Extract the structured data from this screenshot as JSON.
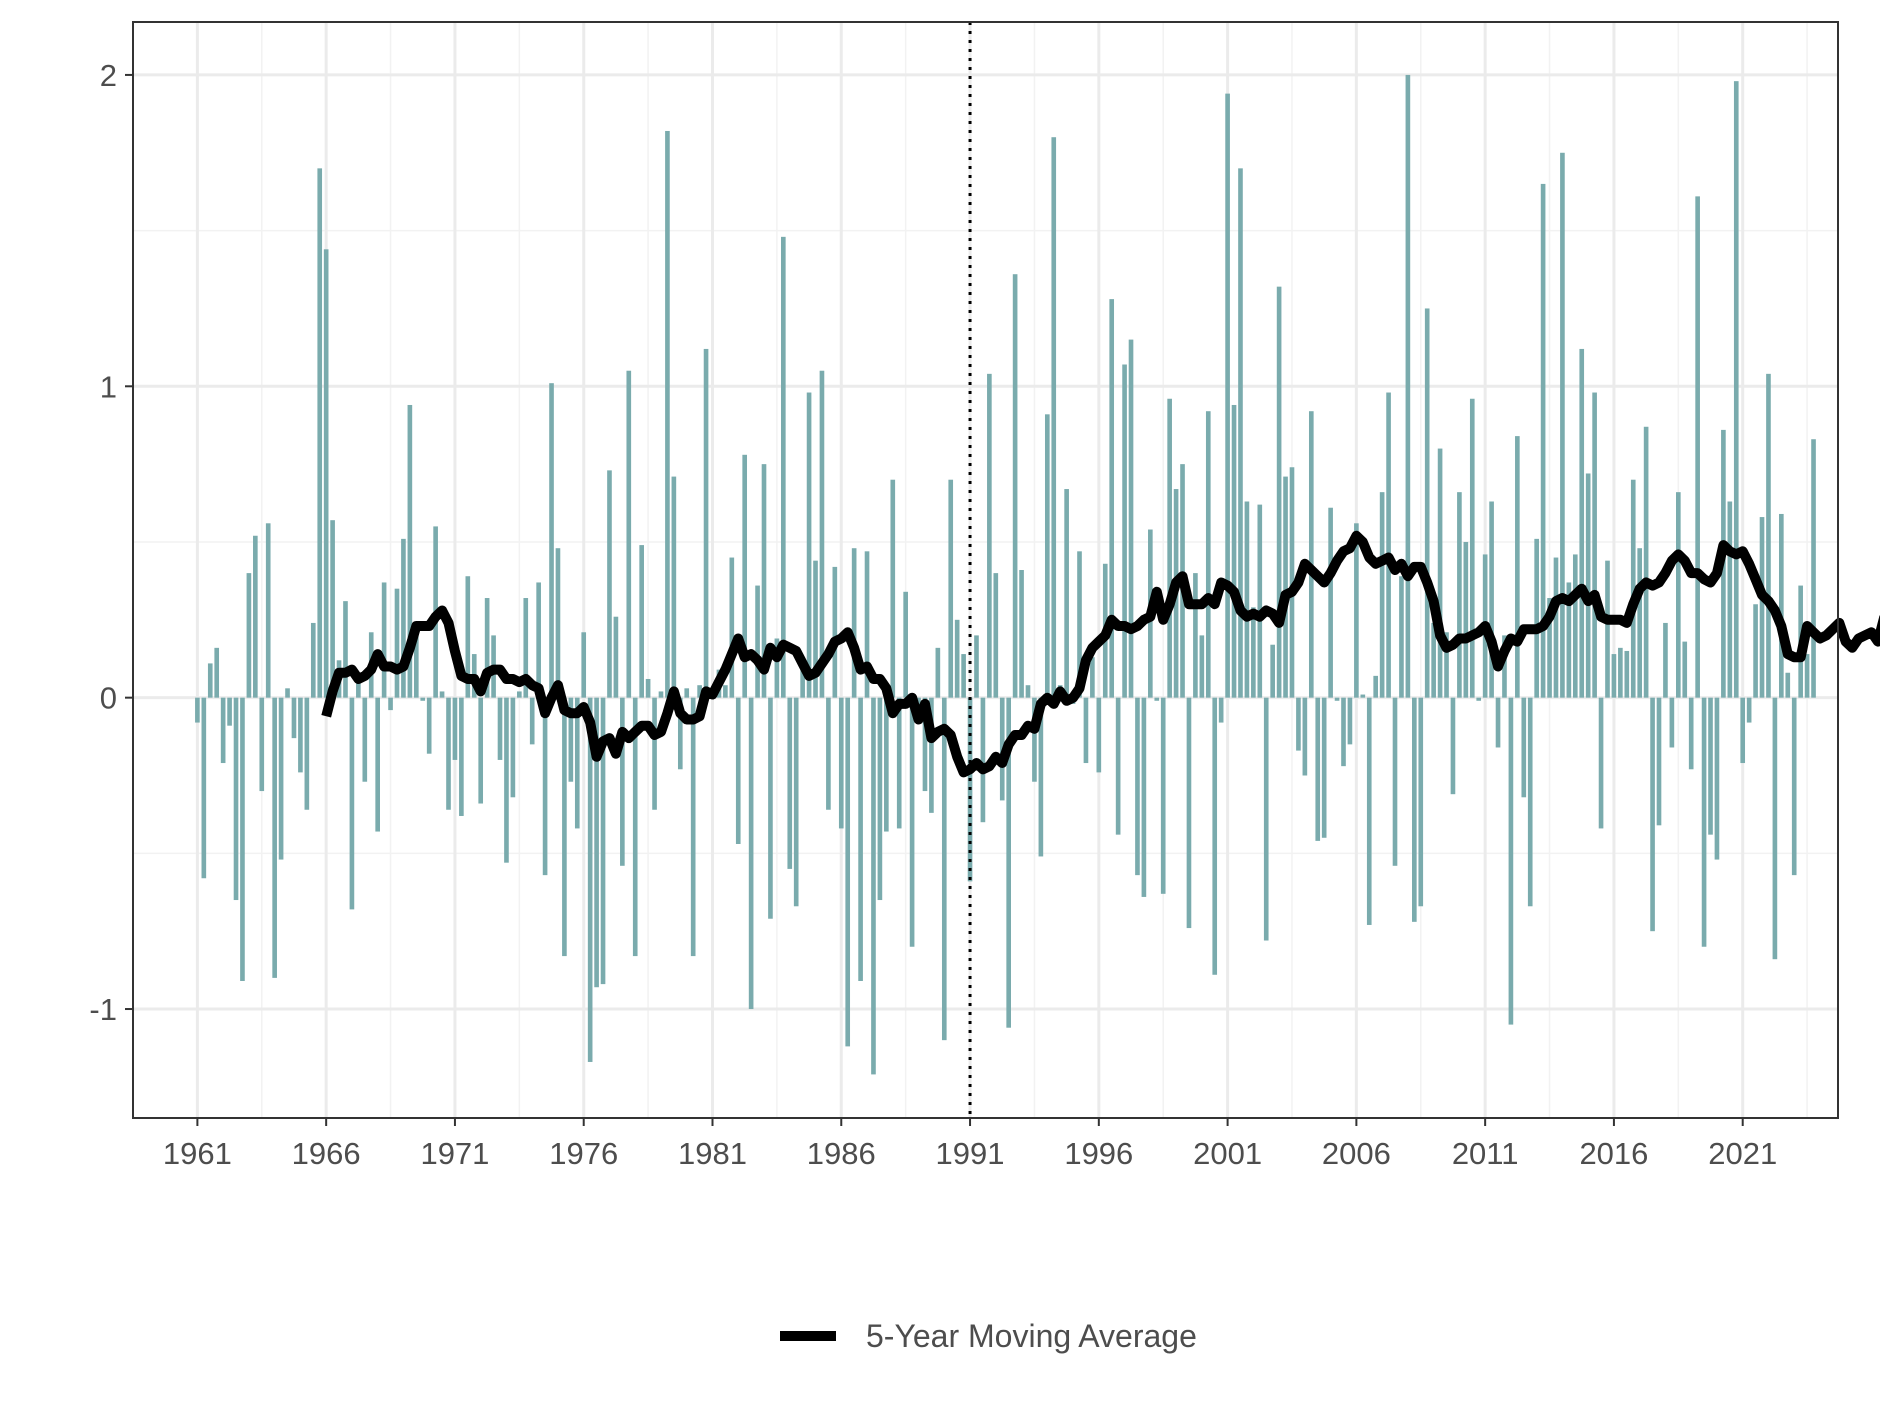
{
  "chart_data": {
    "type": "bar",
    "title": "",
    "xlabel": "",
    "ylabel": "",
    "x_tick_labels": [
      "1961",
      "1966",
      "1971",
      "1976",
      "1981",
      "1986",
      "1991",
      "1996",
      "2001",
      "2006",
      "2011",
      "2016",
      "2021"
    ],
    "y_tick_labels": [
      "-1",
      "0",
      "1",
      "2"
    ],
    "xlim": [
      1958.5,
      2024.7
    ],
    "ylim": [
      -1.35,
      2.17
    ],
    "grid": true,
    "legend_position": "bottom",
    "reference_line_x": 1991,
    "colors": {
      "bars": "#7aabad",
      "moving_average": "#000000",
      "grid_major": "#ebebeb",
      "grid_minor": "#f2f2f2",
      "panel_border": "#333333"
    },
    "series": [
      {
        "kind": "bars",
        "start_x": 1961,
        "step": 0.25,
        "values": [
          -0.08,
          -0.58,
          0.11,
          0.16,
          -0.21,
          -0.09,
          -0.65,
          -0.91,
          0.4,
          0.52,
          -0.3,
          0.56,
          -0.9,
          -0.52,
          0.03,
          -0.13,
          -0.24,
          -0.36,
          0.24,
          1.7,
          1.44,
          0.57,
          0.12,
          0.31,
          -0.68,
          0.05,
          -0.27,
          0.21,
          -0.43,
          0.37,
          -0.04,
          0.35,
          0.51,
          0.94,
          0.23,
          -0.01,
          -0.18,
          0.55,
          0.02,
          -0.36,
          -0.2,
          -0.38,
          0.39,
          0.14,
          -0.34,
          0.32,
          0.2,
          -0.2,
          -0.53,
          -0.32,
          0.02,
          0.32,
          -0.15,
          0.37,
          -0.57,
          1.01,
          0.48,
          -0.83,
          -0.27,
          -0.42,
          0.21,
          -1.17,
          -0.93,
          -0.92,
          0.73,
          0.26,
          -0.54,
          1.05,
          -0.83,
          0.49,
          0.06,
          -0.36,
          0.02,
          1.82,
          0.71,
          -0.23,
          0.03,
          -0.83,
          0.04,
          1.12,
          0.03,
          0.09,
          0.04,
          0.45,
          -0.47,
          0.78,
          -1.0,
          0.36,
          0.75,
          -0.71,
          0.19,
          1.48,
          -0.55,
          -0.67,
          0.09,
          0.98,
          0.44,
          1.05,
          -0.36,
          0.42,
          -0.42,
          -1.12,
          0.48,
          -0.91,
          0.47,
          -1.21,
          -0.65,
          -0.43,
          0.7,
          -0.42,
          0.34,
          -0.8,
          -0.03,
          -0.3,
          -0.37,
          0.16,
          -1.1,
          0.7,
          0.25,
          0.14,
          -0.59,
          0.2,
          -0.4,
          1.04,
          0.4,
          -0.33,
          -1.06,
          1.36,
          0.41,
          0.04,
          -0.27,
          -0.51,
          0.91,
          1.8,
          0.04,
          0.67,
          -0.02,
          0.47,
          -0.21,
          0.13,
          -0.24,
          0.43,
          1.28,
          -0.44,
          1.07,
          1.15,
          -0.57,
          -0.64,
          0.54,
          -0.01,
          -0.63,
          0.96,
          0.67,
          0.75,
          -0.74,
          0.4,
          0.2,
          0.92,
          -0.89,
          -0.08,
          1.94,
          0.94,
          1.7,
          0.63,
          0.29,
          0.62,
          -0.78,
          0.17,
          1.32,
          0.71,
          0.74,
          -0.17,
          -0.25,
          0.92,
          -0.46,
          -0.45,
          0.61,
          -0.01,
          -0.22,
          -0.15,
          0.56,
          0.01,
          -0.73,
          0.07,
          0.66,
          0.98,
          -0.54,
          0.39,
          2.0,
          -0.72,
          -0.67,
          1.25,
          0.24,
          0.8,
          0.21,
          -0.31,
          0.66,
          0.5,
          0.96,
          -0.01,
          0.46,
          0.63,
          -0.16,
          0.2,
          -1.05,
          0.84,
          -0.32,
          -0.67,
          0.51,
          1.65,
          0.32,
          0.45,
          1.75,
          0.37,
          0.46,
          1.12,
          0.72,
          0.98,
          -0.42,
          0.44,
          0.14,
          0.16,
          0.15,
          0.7,
          0.48,
          0.87,
          -0.75,
          -0.41,
          0.24,
          -0.16,
          0.66,
          0.18,
          -0.23,
          1.61,
          -0.8,
          -0.44,
          -0.52,
          0.86,
          0.63,
          1.98,
          -0.21,
          -0.08,
          0.3,
          0.58,
          1.04,
          -0.84,
          0.59,
          0.08,
          -0.57,
          0.36,
          0.14,
          0.83
        ]
      },
      {
        "kind": "line",
        "name": "5-Year Moving Average",
        "start_x": 1966,
        "step": 0.25,
        "values": [
          -0.06,
          0.02,
          0.08,
          0.08,
          0.09,
          0.06,
          0.07,
          0.09,
          0.14,
          0.1,
          0.1,
          0.09,
          0.1,
          0.16,
          0.23,
          0.23,
          0.23,
          0.26,
          0.28,
          0.24,
          0.15,
          0.07,
          0.06,
          0.06,
          0.02,
          0.08,
          0.09,
          0.09,
          0.06,
          0.06,
          0.05,
          0.06,
          0.04,
          0.03,
          -0.05,
          0.0,
          0.04,
          -0.04,
          -0.05,
          -0.05,
          -0.03,
          -0.08,
          -0.19,
          -0.14,
          -0.13,
          -0.18,
          -0.11,
          -0.13,
          -0.11,
          -0.09,
          -0.09,
          -0.12,
          -0.11,
          -0.05,
          0.02,
          -0.05,
          -0.07,
          -0.07,
          -0.06,
          0.02,
          0.01,
          0.05,
          0.09,
          0.14,
          0.19,
          0.13,
          0.14,
          0.12,
          0.09,
          0.16,
          0.13,
          0.17,
          0.16,
          0.15,
          0.11,
          0.07,
          0.08,
          0.11,
          0.14,
          0.18,
          0.19,
          0.21,
          0.16,
          0.09,
          0.1,
          0.06,
          0.06,
          0.03,
          -0.05,
          -0.02,
          -0.02,
          0.0,
          -0.07,
          -0.02,
          -0.13,
          -0.11,
          -0.1,
          -0.12,
          -0.19,
          -0.24,
          -0.23,
          -0.21,
          -0.23,
          -0.22,
          -0.19,
          -0.21,
          -0.15,
          -0.12,
          -0.12,
          -0.09,
          -0.1,
          -0.02,
          0.0,
          -0.02,
          0.02,
          -0.01,
          0.0,
          0.03,
          0.12,
          0.16,
          0.18,
          0.2,
          0.25,
          0.23,
          0.23,
          0.22,
          0.23,
          0.25,
          0.26,
          0.34,
          0.25,
          0.3,
          0.37,
          0.39,
          0.3,
          0.3,
          0.3,
          0.32,
          0.3,
          0.37,
          0.36,
          0.34,
          0.28,
          0.26,
          0.27,
          0.26,
          0.28,
          0.27,
          0.24,
          0.33,
          0.34,
          0.37,
          0.43,
          0.41,
          0.39,
          0.37,
          0.4,
          0.44,
          0.47,
          0.48,
          0.52,
          0.5,
          0.45,
          0.43,
          0.44,
          0.45,
          0.41,
          0.43,
          0.39,
          0.42,
          0.42,
          0.37,
          0.31,
          0.2,
          0.16,
          0.17,
          0.19,
          0.19,
          0.2,
          0.21,
          0.23,
          0.18,
          0.1,
          0.15,
          0.19,
          0.18,
          0.22,
          0.22,
          0.22,
          0.23,
          0.26,
          0.31,
          0.32,
          0.31,
          0.33,
          0.35,
          0.31,
          0.33,
          0.26,
          0.25,
          0.25,
          0.25,
          0.24,
          0.3,
          0.35,
          0.37,
          0.36,
          0.37,
          0.4,
          0.44,
          0.46,
          0.44,
          0.4,
          0.4,
          0.38,
          0.37,
          0.4,
          0.49,
          0.47,
          0.46,
          0.47,
          0.43,
          0.38,
          0.33,
          0.31,
          0.28,
          0.23,
          0.14,
          0.13,
          0.13,
          0.23,
          0.21,
          0.19,
          0.2,
          0.22,
          0.24,
          0.18,
          0.16,
          0.19,
          0.2,
          0.21,
          0.18,
          0.26
        ]
      }
    ],
    "legend": [
      {
        "label": "5-Year Moving Average"
      }
    ]
  }
}
